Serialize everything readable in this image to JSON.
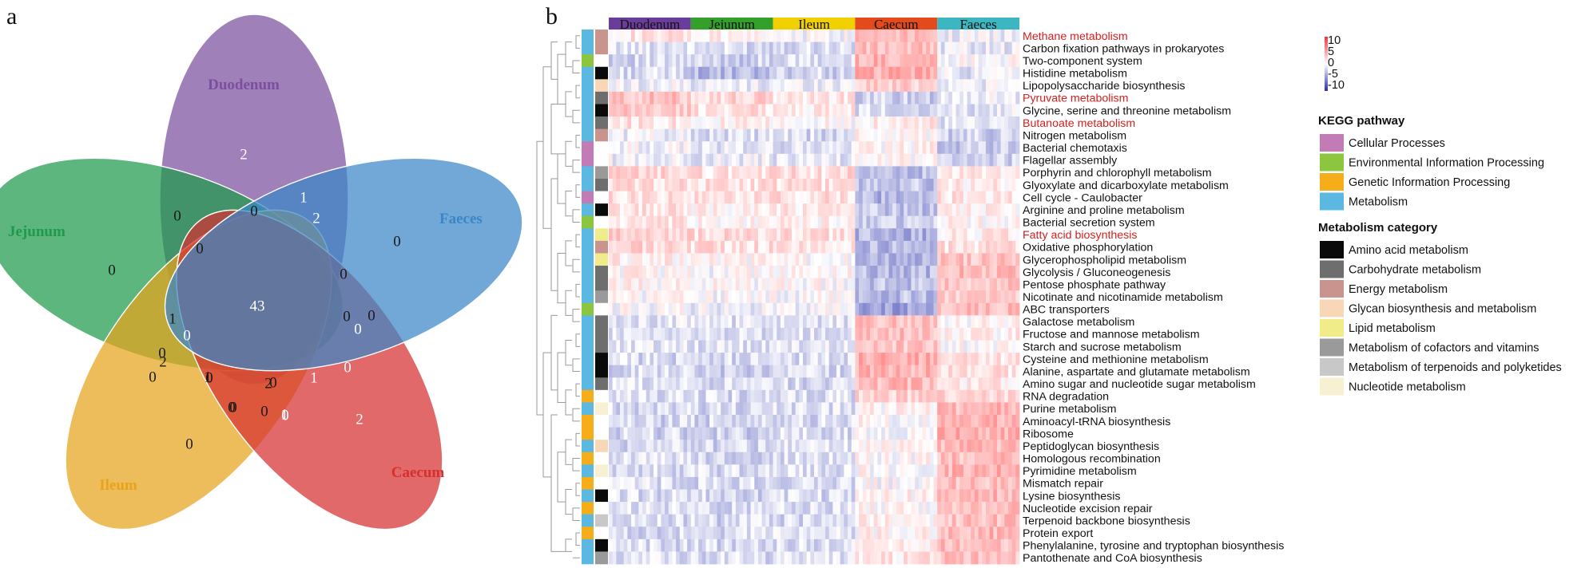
{
  "panels": {
    "a": "a",
    "b": "b"
  },
  "venn": {
    "sets": [
      {
        "name": "Duodenum",
        "color": "#7b4f9e"
      },
      {
        "name": "Jejunum",
        "color": "#1e9a4b"
      },
      {
        "name": "Ileum",
        "color": "#e8a31c"
      },
      {
        "name": "Caecum",
        "color": "#d62f2f"
      },
      {
        "name": "Faeces",
        "color": "#3a86c8"
      }
    ],
    "region_counts": [
      {
        "region": "Duodenum only",
        "value": "2"
      },
      {
        "region": "Jejunum only",
        "value": "0"
      },
      {
        "region": "Faeces only",
        "value": "0"
      },
      {
        "region": "Caecum only",
        "value": "2"
      },
      {
        "region": "Ileum only",
        "value": "0"
      },
      {
        "region": "all",
        "value": "43"
      },
      {
        "region": "r1",
        "value": "0"
      },
      {
        "region": "r2",
        "value": "0"
      },
      {
        "region": "r3",
        "value": "1"
      },
      {
        "region": "r4",
        "value": "2"
      },
      {
        "region": "r5",
        "value": "0"
      },
      {
        "region": "r6",
        "value": "0"
      },
      {
        "region": "r7",
        "value": "0"
      },
      {
        "region": "r8",
        "value": "0"
      },
      {
        "region": "r9",
        "value": "0"
      },
      {
        "region": "r10",
        "value": "1"
      },
      {
        "region": "r11",
        "value": "2"
      },
      {
        "region": "r12",
        "value": "0"
      },
      {
        "region": "r13",
        "value": "1"
      },
      {
        "region": "r14",
        "value": "0"
      },
      {
        "region": "r15",
        "value": "0"
      },
      {
        "region": "r16",
        "value": "0"
      },
      {
        "region": "r17",
        "value": "2"
      },
      {
        "region": "r18",
        "value": "1"
      },
      {
        "region": "r19",
        "value": "0"
      },
      {
        "region": "r20",
        "value": "0"
      },
      {
        "region": "r21",
        "value": "0"
      },
      {
        "region": "r22",
        "value": "1"
      },
      {
        "region": "r23",
        "value": "0"
      },
      {
        "region": "r24",
        "value": "0"
      },
      {
        "region": "r25",
        "value": "0"
      }
    ]
  },
  "heatmap": {
    "groups": [
      {
        "name": "Duodenum",
        "color": "#6a3d9a"
      },
      {
        "name": "Jejunum",
        "color": "#33a02c"
      },
      {
        "name": "Ileum",
        "color": "#f0d000"
      },
      {
        "name": "Caecum",
        "color": "#e34a1c"
      },
      {
        "name": "Faeces",
        "color": "#3cb6c0"
      }
    ],
    "pathways": [
      {
        "name": "Methane metabolism",
        "highlight": true,
        "kegg": "#5bb8e0",
        "cat": "#c9938e",
        "p": [
          0.5,
          0.2,
          0.0,
          1.5,
          -0.2
        ]
      },
      {
        "name": "Carbon fixation pathways in prokaryotes",
        "highlight": false,
        "kegg": "#5bb8e0",
        "cat": "#c9938e",
        "p": [
          -0.4,
          -0.6,
          -0.5,
          1.2,
          -0.3
        ]
      },
      {
        "name": "Two-component system",
        "highlight": false,
        "kegg": "#8cc63f",
        "cat": "#ffffff",
        "p": [
          -0.7,
          -0.8,
          -0.6,
          1.5,
          0.1
        ]
      },
      {
        "name": "Histidine metabolism",
        "highlight": false,
        "kegg": "#5bb8e0",
        "cat": "#0a0a0a",
        "p": [
          -0.6,
          -1.3,
          -0.7,
          1.6,
          -0.4
        ]
      },
      {
        "name": "Lipopolysaccharide biosynthesis",
        "highlight": false,
        "kegg": "#5bb8e0",
        "cat": "#f7d7b5",
        "p": [
          -0.2,
          -0.3,
          -0.2,
          1.0,
          -0.2
        ]
      },
      {
        "name": "Pyruvate metabolism",
        "highlight": true,
        "kegg": "#5bb8e0",
        "cat": "#6e6e6e",
        "p": [
          1.2,
          0.8,
          0.5,
          -0.8,
          -0.2
        ]
      },
      {
        "name": "Glycine, serine and threonine metabolism",
        "highlight": false,
        "kegg": "#5bb8e0",
        "cat": "#0a0a0a",
        "p": [
          1.0,
          0.6,
          0.4,
          -0.6,
          -0.4
        ]
      },
      {
        "name": "Butanoate metabolism",
        "highlight": true,
        "kegg": "#5bb8e0",
        "cat": "#6e6e6e",
        "p": [
          0.6,
          0.2,
          0.1,
          0.4,
          -0.5
        ]
      },
      {
        "name": "Nitrogen metabolism",
        "highlight": false,
        "kegg": "#5bb8e0",
        "cat": "#c9938e",
        "p": [
          -0.2,
          -0.6,
          -0.7,
          0.2,
          -0.8
        ]
      },
      {
        "name": "Bacterial chemotaxis",
        "highlight": false,
        "kegg": "#c27bb5",
        "cat": "#ffffff",
        "p": [
          -0.1,
          -0.4,
          -0.5,
          0.2,
          -0.9
        ]
      },
      {
        "name": "Flagellar assembly",
        "highlight": false,
        "kegg": "#c27bb5",
        "cat": "#ffffff",
        "p": [
          -0.2,
          -0.3,
          -0.4,
          0.1,
          -0.8
        ]
      },
      {
        "name": "Porphyrin and chlorophyll metabolism",
        "highlight": false,
        "kegg": "#5bb8e0",
        "cat": "#9a9a9a",
        "p": [
          0.8,
          0.6,
          0.7,
          -1.2,
          0.3
        ]
      },
      {
        "name": "Glyoxylate and dicarboxylate metabolism",
        "highlight": false,
        "kegg": "#5bb8e0",
        "cat": "#6e6e6e",
        "p": [
          0.7,
          0.6,
          0.6,
          -1.0,
          0.3
        ]
      },
      {
        "name": "Cell cycle - Caulobacter",
        "highlight": false,
        "kegg": "#c27bb5",
        "cat": "#ffffff",
        "p": [
          0.6,
          0.5,
          0.6,
          -1.3,
          0.5
        ]
      },
      {
        "name": "Arginine and proline metabolism",
        "highlight": false,
        "kegg": "#5bb8e0",
        "cat": "#0a0a0a",
        "p": [
          0.5,
          0.3,
          0.4,
          -1.0,
          0.3
        ]
      },
      {
        "name": "Bacterial secretion system",
        "highlight": false,
        "kegg": "#8cc63f",
        "cat": "#ffffff",
        "p": [
          0.4,
          0.2,
          0.2,
          -0.8,
          0.2
        ]
      },
      {
        "name": "Fatty acid biosynthesis",
        "highlight": true,
        "kegg": "#5bb8e0",
        "cat": "#f0ec8a",
        "p": [
          0.9,
          0.7,
          0.6,
          -1.3,
          0.4
        ]
      },
      {
        "name": "Oxidative phosphorylation",
        "highlight": false,
        "kegg": "#5bb8e0",
        "cat": "#c9938e",
        "p": [
          0.8,
          0.6,
          0.5,
          -1.2,
          0.6
        ]
      },
      {
        "name": "Glycerophospholipid metabolism",
        "highlight": false,
        "kegg": "#5bb8e0",
        "cat": "#f0ec8a",
        "p": [
          0.3,
          0.1,
          0.0,
          -1.4,
          1.2
        ]
      },
      {
        "name": "Glycolysis / Gluconeogenesis",
        "highlight": false,
        "kegg": "#5bb8e0",
        "cat": "#6e6e6e",
        "p": [
          0.2,
          0.0,
          0.1,
          -1.2,
          1.4
        ]
      },
      {
        "name": "Pentose phosphate pathway",
        "highlight": false,
        "kegg": "#5bb8e0",
        "cat": "#6e6e6e",
        "p": [
          0.2,
          0.1,
          0.1,
          -1.0,
          1.1
        ]
      },
      {
        "name": "Nicotinate and nicotinamide metabolism",
        "highlight": false,
        "kegg": "#5bb8e0",
        "cat": "#9a9a9a",
        "p": [
          0.1,
          0.0,
          0.0,
          -1.1,
          0.9
        ]
      },
      {
        "name": "ABC transporters",
        "highlight": false,
        "kegg": "#8cc63f",
        "cat": "#ffffff",
        "p": [
          0.0,
          -0.2,
          -0.1,
          -1.6,
          1.3
        ]
      },
      {
        "name": "Galactose metabolism",
        "highlight": false,
        "kegg": "#5bb8e0",
        "cat": "#6e6e6e",
        "p": [
          -0.4,
          -0.5,
          -0.5,
          1.2,
          0.2
        ]
      },
      {
        "name": "Fructose and mannose metabolism",
        "highlight": false,
        "kegg": "#5bb8e0",
        "cat": "#6e6e6e",
        "p": [
          -0.5,
          -0.6,
          -0.5,
          1.3,
          0.3
        ]
      },
      {
        "name": "Starch and sucrose metabolism",
        "highlight": false,
        "kegg": "#5bb8e0",
        "cat": "#6e6e6e",
        "p": [
          -0.4,
          -0.5,
          -0.4,
          1.1,
          0.1
        ]
      },
      {
        "name": "Cysteine and methionine metabolism",
        "highlight": false,
        "kegg": "#5bb8e0",
        "cat": "#0a0a0a",
        "p": [
          -0.6,
          -0.7,
          -0.6,
          1.6,
          0.5
        ]
      },
      {
        "name": "Alanine, aspartate and glutamate metabolism",
        "highlight": false,
        "kegg": "#5bb8e0",
        "cat": "#0a0a0a",
        "p": [
          -0.6,
          -0.8,
          -0.7,
          1.5,
          0.6
        ]
      },
      {
        "name": "Amino sugar and nucleotide sugar metabolism",
        "highlight": false,
        "kegg": "#5bb8e0",
        "cat": "#6e6e6e",
        "p": [
          -0.5,
          -0.7,
          -0.6,
          1.4,
          0.4
        ]
      },
      {
        "name": "RNA degradation",
        "highlight": false,
        "kegg": "#f5ad1a",
        "cat": "#ffffff",
        "p": [
          -0.5,
          -0.6,
          -0.5,
          0.9,
          0.7
        ]
      },
      {
        "name": "Purine metabolism",
        "highlight": false,
        "kegg": "#5bb8e0",
        "cat": "#f8f0d2",
        "p": [
          -0.6,
          -0.6,
          -0.5,
          0.2,
          1.4
        ]
      },
      {
        "name": "Aminoacyl-tRNA biosynthesis",
        "highlight": false,
        "kegg": "#f5ad1a",
        "cat": "#ffffff",
        "p": [
          -0.7,
          -0.7,
          -0.6,
          0.1,
          1.5
        ]
      },
      {
        "name": "Ribosome",
        "highlight": false,
        "kegg": "#f5ad1a",
        "cat": "#ffffff",
        "p": [
          -0.7,
          -0.8,
          -0.6,
          0.0,
          1.6
        ]
      },
      {
        "name": "Peptidoglycan biosynthesis",
        "highlight": false,
        "kegg": "#5bb8e0",
        "cat": "#f7d7b5",
        "p": [
          -0.6,
          -0.7,
          -0.5,
          0.1,
          1.4
        ]
      },
      {
        "name": "Homologous recombination",
        "highlight": false,
        "kegg": "#f5ad1a",
        "cat": "#ffffff",
        "p": [
          -0.5,
          -0.6,
          -0.5,
          0.1,
          1.3
        ]
      },
      {
        "name": "Pyrimidine metabolism",
        "highlight": false,
        "kegg": "#5bb8e0",
        "cat": "#f8f0d2",
        "p": [
          -0.6,
          -0.6,
          -0.5,
          0.1,
          1.5
        ]
      },
      {
        "name": "Mismatch repair",
        "highlight": false,
        "kegg": "#f5ad1a",
        "cat": "#ffffff",
        "p": [
          -0.5,
          -0.6,
          -0.5,
          0.0,
          1.3
        ]
      },
      {
        "name": "Lysine biosynthesis",
        "highlight": false,
        "kegg": "#5bb8e0",
        "cat": "#0a0a0a",
        "p": [
          -0.6,
          -0.7,
          -0.6,
          0.2,
          1.4
        ]
      },
      {
        "name": "Nucleotide excision repair",
        "highlight": false,
        "kegg": "#f5ad1a",
        "cat": "#ffffff",
        "p": [
          -0.5,
          -0.6,
          -0.5,
          0.1,
          1.2
        ]
      },
      {
        "name": "Terpenoid backbone biosynthesis",
        "highlight": false,
        "kegg": "#5bb8e0",
        "cat": "#c8c8c8",
        "p": [
          -0.6,
          -0.7,
          -0.6,
          0.3,
          1.3
        ]
      },
      {
        "name": "Protein export",
        "highlight": false,
        "kegg": "#f5ad1a",
        "cat": "#ffffff",
        "p": [
          -0.6,
          -0.6,
          -0.5,
          0.2,
          1.4
        ]
      },
      {
        "name": "Phenylalanine, tyrosine and tryptophan biosynthesis",
        "highlight": false,
        "kegg": "#5bb8e0",
        "cat": "#0a0a0a",
        "p": [
          -0.6,
          -0.7,
          -0.6,
          0.3,
          1.3
        ]
      },
      {
        "name": "Pantothenate and CoA biosynthesis",
        "highlight": false,
        "kegg": "#5bb8e0",
        "cat": "#9a9a9a",
        "p": [
          -0.5,
          -0.6,
          -0.5,
          0.4,
          1.2
        ]
      }
    ],
    "colorbar": {
      "ticks": [
        "10",
        "5",
        "0",
        "-5",
        "-10"
      ],
      "high_color": "#e8353b",
      "low_color": "#2b2fa0"
    },
    "legend_kegg": {
      "title": "KEGG pathway",
      "items": [
        {
          "label": "Cellular Processes",
          "color": "#c27bb5"
        },
        {
          "label": "Environmental Information Processing",
          "color": "#8cc63f"
        },
        {
          "label": "Genetic Information Processing",
          "color": "#f5ad1a"
        },
        {
          "label": "Metabolism",
          "color": "#5bb8e0"
        }
      ]
    },
    "legend_meta": {
      "title": "Metabolism category",
      "items": [
        {
          "label": "Amino acid metabolism",
          "color": "#0a0a0a"
        },
        {
          "label": "Carbohydrate metabolism",
          "color": "#6e6e6e"
        },
        {
          "label": "Energy metabolism",
          "color": "#c9938e"
        },
        {
          "label": "Glycan biosynthesis and metabolism",
          "color": "#f7d7b5"
        },
        {
          "label": "Lipid metabolism",
          "color": "#f0ec8a"
        },
        {
          "label": "Metabolism of cofactors and vitamins",
          "color": "#9a9a9a"
        },
        {
          "label": "Metabolism of terpenoids and polyketides",
          "color": "#c8c8c8"
        },
        {
          "label": "Nucleotide metabolism",
          "color": "#f8f0d2"
        }
      ]
    }
  }
}
